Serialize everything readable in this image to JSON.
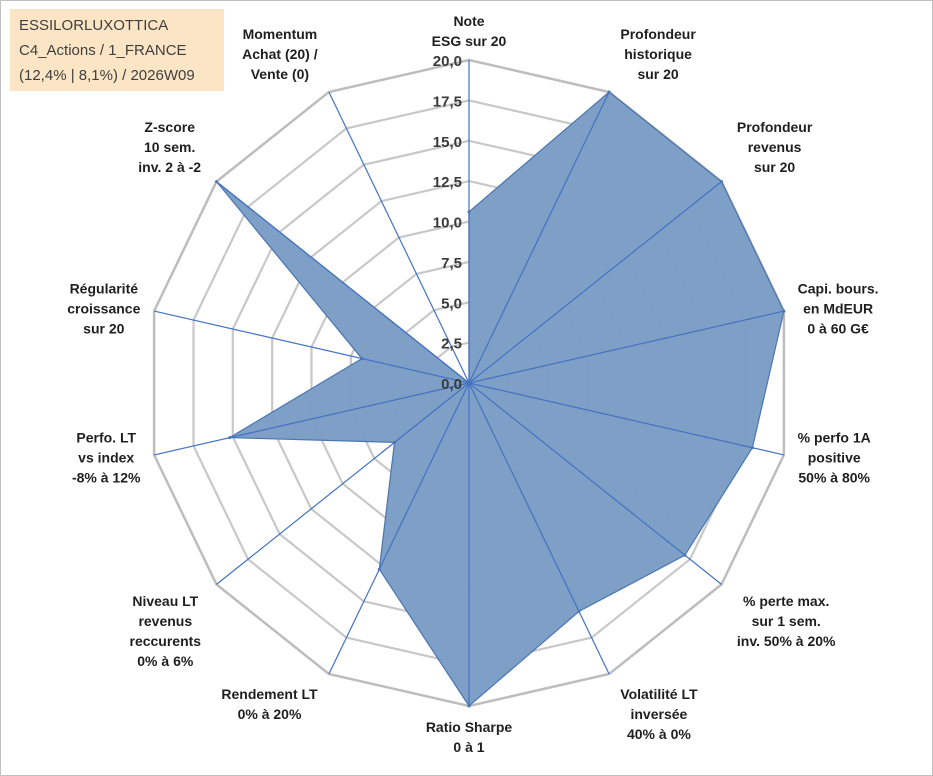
{
  "info_box": {
    "line1": "ESSILORLUXOTTICA",
    "line2": "C4_Actions / 1_FRANCE",
    "line3": "(12,4% | 8,1%) / 2026W09"
  },
  "colors": {
    "fill": "#7a9cc4",
    "series_line": "#4a76b0",
    "spoke": "#4472c4",
    "grid": "#c8c8c8",
    "grid_outer": "#bdbdbd"
  },
  "chart_data": {
    "type": "radar",
    "title": "",
    "r_min": 0,
    "r_max": 20,
    "ticks": [
      "0,0",
      "2,5",
      "5,0",
      "7,5",
      "10,0",
      "12,5",
      "15,0",
      "17,5",
      "20,0"
    ],
    "tick_values": [
      0,
      2.5,
      5,
      7.5,
      10,
      12.5,
      15,
      17.5,
      20
    ],
    "categories": [
      [
        "Note",
        "ESG sur 20"
      ],
      [
        "Profondeur",
        "historique",
        "sur 20"
      ],
      [
        "Profondeur",
        "revenus",
        "sur 20"
      ],
      [
        "Capi. bours.",
        "en MdEUR",
        "0 à 60 G€"
      ],
      [
        "% perfo 1A",
        "positive",
        "50% à 80%"
      ],
      [
        "% perte max.",
        "sur 1 sem.",
        "inv. 50% à 20%"
      ],
      [
        "Volatilité LT",
        "inversée",
        "40% à 0%"
      ],
      [
        "Ratio Sharpe",
        "0 à 1"
      ],
      [
        "Rendement LT",
        "0% à 20%"
      ],
      [
        "Niveau LT",
        "revenus",
        "reccurents",
        "0% à 6%"
      ],
      [
        "Perfo. LT",
        "vs index",
        "-8% à 12%"
      ],
      [
        "Régularité",
        "croissance",
        "sur 20"
      ],
      [
        "Z-score",
        "10 sem.",
        "inv. 2 à -2"
      ],
      [
        "Momentum",
        "Achat (20) /",
        "Vente (0)"
      ]
    ],
    "series": [
      {
        "name": "ESSILORLUXOTTICA",
        "values": [
          10.6,
          20,
          20,
          20,
          18,
          17.1,
          15.7,
          20,
          12.8,
          5.9,
          15.2,
          6.8,
          20,
          0
        ]
      }
    ]
  }
}
